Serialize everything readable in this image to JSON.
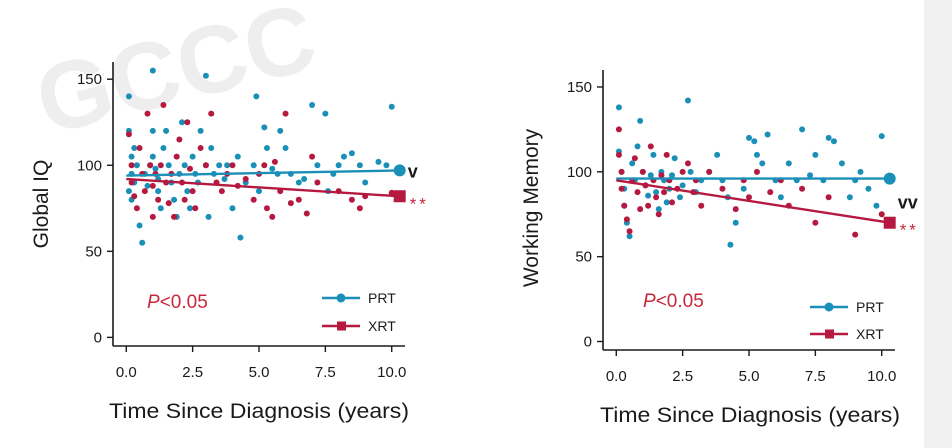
{
  "colors": {
    "prt": "#1a8fb8",
    "xrt": "#b5193f",
    "pval": "#c8283c",
    "axis": "#1a1a1a"
  },
  "watermark": "GCCC",
  "chart_data": [
    {
      "id": "global-iq",
      "type": "scatter",
      "ylabel": "Global IQ",
      "xlabel": "Time Since Diagnosis (years)",
      "xlim": [
        -0.5,
        10.5
      ],
      "ylim": [
        -5,
        160
      ],
      "xticks": [
        0,
        2.5,
        5,
        7.5,
        10
      ],
      "xtick_labels": [
        "0.0",
        "2.5",
        "5.0",
        "7.5",
        "10.0"
      ],
      "yticks": [
        0,
        50,
        100,
        150
      ],
      "ytick_labels": [
        "0",
        "50",
        "100",
        "150"
      ],
      "p_prefix": "P",
      "p_suffix": "<0.05",
      "legend": [
        {
          "key": "prt",
          "label": "PRT"
        },
        {
          "key": "xrt",
          "label": "XRT"
        }
      ],
      "end_markers": [
        {
          "key": "prt",
          "text": "v"
        },
        {
          "key": "xrt",
          "text": "**"
        }
      ],
      "series": [
        {
          "key": "prt",
          "name": "PRT",
          "line": {
            "x": [
              0,
              10.3
            ],
            "y": [
              94,
              97
            ]
          },
          "points": [
            [
              0.1,
              140
            ],
            [
              0.1,
              120
            ],
            [
              0.2,
              105
            ],
            [
              0.2,
              95
            ],
            [
              0.3,
              90
            ],
            [
              0.1,
              85
            ],
            [
              0.2,
              80
            ],
            [
              0.4,
              100
            ],
            [
              0.3,
              110
            ],
            [
              0.5,
              65
            ],
            [
              0.6,
              55
            ],
            [
              0.7,
              95
            ],
            [
              0.8,
              88
            ],
            [
              0.9,
              100
            ],
            [
              1.0,
              155
            ],
            [
              1.0,
              120
            ],
            [
              1.0,
              105
            ],
            [
              1.1,
              98
            ],
            [
              1.2,
              92
            ],
            [
              1.2,
              85
            ],
            [
              1.3,
              75
            ],
            [
              1.4,
              110
            ],
            [
              1.5,
              120
            ],
            [
              1.6,
              100
            ],
            [
              1.7,
              90
            ],
            [
              1.8,
              80
            ],
            [
              1.9,
              70
            ],
            [
              2.0,
              95
            ],
            [
              2.1,
              125
            ],
            [
              2.2,
              100
            ],
            [
              2.3,
              85
            ],
            [
              2.4,
              75
            ],
            [
              2.5,
              105
            ],
            [
              2.6,
              95
            ],
            [
              2.7,
              90
            ],
            [
              2.8,
              120
            ],
            [
              3.0,
              152
            ],
            [
              3.0,
              100
            ],
            [
              3.1,
              70
            ],
            [
              3.2,
              110
            ],
            [
              3.3,
              95
            ],
            [
              3.5,
              100
            ],
            [
              3.7,
              92
            ],
            [
              3.8,
              100
            ],
            [
              4.0,
              75
            ],
            [
              4.2,
              105
            ],
            [
              4.3,
              58
            ],
            [
              4.5,
              90
            ],
            [
              4.8,
              100
            ],
            [
              4.9,
              140
            ],
            [
              5.0,
              85
            ],
            [
              5.2,
              122
            ],
            [
              5.3,
              110
            ],
            [
              5.5,
              98
            ],
            [
              5.7,
              95
            ],
            [
              5.8,
              120
            ],
            [
              6.0,
              110
            ],
            [
              6.2,
              95
            ],
            [
              6.5,
              90
            ],
            [
              6.7,
              92
            ],
            [
              7.0,
              135
            ],
            [
              7.2,
              100
            ],
            [
              7.5,
              130
            ],
            [
              7.6,
              85
            ],
            [
              7.8,
              95
            ],
            [
              8.0,
              100
            ],
            [
              8.2,
              105
            ],
            [
              8.5,
              107
            ],
            [
              8.8,
              100
            ],
            [
              9.0,
              90
            ],
            [
              9.5,
              102
            ],
            [
              9.8,
              100
            ],
            [
              10.0,
              134
            ]
          ]
        },
        {
          "key": "xrt",
          "name": "XRT",
          "line": {
            "x": [
              0,
              10.3
            ],
            "y": [
              92,
              82
            ]
          },
          "points": [
            [
              0.1,
              118
            ],
            [
              0.2,
              100
            ],
            [
              0.2,
              90
            ],
            [
              0.3,
              82
            ],
            [
              0.4,
              75
            ],
            [
              0.5,
              110
            ],
            [
              0.6,
              95
            ],
            [
              0.7,
              85
            ],
            [
              0.8,
              130
            ],
            [
              0.9,
              100
            ],
            [
              1.0,
              70
            ],
            [
              1.0,
              88
            ],
            [
              1.1,
              95
            ],
            [
              1.2,
              80
            ],
            [
              1.3,
              100
            ],
            [
              1.4,
              135
            ],
            [
              1.5,
              90
            ],
            [
              1.6,
              78
            ],
            [
              1.7,
              95
            ],
            [
              1.8,
              70
            ],
            [
              1.9,
              105
            ],
            [
              2.0,
              115
            ],
            [
              2.1,
              90
            ],
            [
              2.2,
              80
            ],
            [
              2.3,
              125
            ],
            [
              2.4,
              98
            ],
            [
              2.5,
              85
            ],
            [
              2.6,
              75
            ],
            [
              2.8,
              110
            ],
            [
              3.0,
              100
            ],
            [
              3.2,
              130
            ],
            [
              3.4,
              90
            ],
            [
              3.6,
              85
            ],
            [
              3.8,
              95
            ],
            [
              4.0,
              100
            ],
            [
              4.2,
              88
            ],
            [
              4.5,
              92
            ],
            [
              4.8,
              80
            ],
            [
              5.0,
              95
            ],
            [
              5.2,
              100
            ],
            [
              5.3,
              75
            ],
            [
              5.5,
              70
            ],
            [
              5.6,
              102
            ],
            [
              5.8,
              85
            ],
            [
              6.0,
              130
            ],
            [
              6.2,
              78
            ],
            [
              6.5,
              80
            ],
            [
              6.8,
              72
            ],
            [
              7.0,
              105
            ],
            [
              7.2,
              90
            ],
            [
              8.0,
              85
            ],
            [
              8.5,
              80
            ],
            [
              8.8,
              75
            ],
            [
              9.0,
              82
            ],
            [
              10.0,
              84
            ]
          ]
        }
      ]
    },
    {
      "id": "working-memory",
      "type": "scatter",
      "ylabel": "Working Memory",
      "xlabel": "Time Since Diagnosis (years)",
      "xlim": [
        -0.5,
        10.5
      ],
      "ylim": [
        -5,
        160
      ],
      "xticks": [
        0,
        2.5,
        5,
        7.5,
        10
      ],
      "xtick_labels": [
        "0.0",
        "2.5",
        "5.0",
        "7.5",
        "10.0"
      ],
      "yticks": [
        0,
        50,
        100,
        150
      ],
      "ytick_labels": [
        "0",
        "50",
        "100",
        "150"
      ],
      "p_prefix": "P",
      "p_suffix": "<0.05",
      "legend": [
        {
          "key": "prt",
          "label": "PRT"
        },
        {
          "key": "xrt",
          "label": "XRT"
        }
      ],
      "end_markers": [
        {
          "key": "prt",
          "text": "vv"
        },
        {
          "key": "xrt",
          "text": "**"
        }
      ],
      "series": [
        {
          "key": "prt",
          "name": "PRT",
          "line": {
            "x": [
              0,
              10.3
            ],
            "y": [
              96,
              96
            ]
          },
          "points": [
            [
              0.1,
              138
            ],
            [
              0.1,
              112
            ],
            [
              0.2,
              100
            ],
            [
              0.3,
              90
            ],
            [
              0.3,
              80
            ],
            [
              0.4,
              70
            ],
            [
              0.5,
              62
            ],
            [
              0.6,
              105
            ],
            [
              0.7,
              95
            ],
            [
              0.8,
              115
            ],
            [
              0.9,
              130
            ],
            [
              1.0,
              100
            ],
            [
              1.1,
              92
            ],
            [
              1.2,
              86
            ],
            [
              1.3,
              98
            ],
            [
              1.4,
              110
            ],
            [
              1.5,
              88
            ],
            [
              1.6,
              78
            ],
            [
              1.7,
              100
            ],
            [
              1.8,
              95
            ],
            [
              1.9,
              82
            ],
            [
              2.0,
              90
            ],
            [
              2.1,
              98
            ],
            [
              2.2,
              108
            ],
            [
              2.4,
              85
            ],
            [
              2.5,
              92
            ],
            [
              2.7,
              142
            ],
            [
              2.8,
              100
            ],
            [
              3.0,
              88
            ],
            [
              3.2,
              95
            ],
            [
              3.5,
              100
            ],
            [
              3.8,
              110
            ],
            [
              4.0,
              95
            ],
            [
              4.2,
              85
            ],
            [
              4.3,
              57
            ],
            [
              4.5,
              70
            ],
            [
              4.8,
              90
            ],
            [
              5.0,
              120
            ],
            [
              5.2,
              118
            ],
            [
              5.3,
              110
            ],
            [
              5.5,
              105
            ],
            [
              5.7,
              122
            ],
            [
              6.0,
              95
            ],
            [
              6.2,
              85
            ],
            [
              6.5,
              105
            ],
            [
              6.8,
              95
            ],
            [
              7.0,
              125
            ],
            [
              7.3,
              98
            ],
            [
              7.5,
              110
            ],
            [
              7.8,
              95
            ],
            [
              8.0,
              120
            ],
            [
              8.2,
              118
            ],
            [
              8.5,
              105
            ],
            [
              8.8,
              85
            ],
            [
              9.0,
              95
            ],
            [
              9.2,
              100
            ],
            [
              9.5,
              90
            ],
            [
              9.8,
              80
            ],
            [
              10.0,
              121
            ]
          ]
        },
        {
          "key": "xrt",
          "name": "XRT",
          "line": {
            "x": [
              0,
              10.3
            ],
            "y": [
              95,
              70
            ]
          },
          "points": [
            [
              0.1,
              125
            ],
            [
              0.1,
              110
            ],
            [
              0.2,
              100
            ],
            [
              0.2,
              90
            ],
            [
              0.3,
              80
            ],
            [
              0.4,
              72
            ],
            [
              0.5,
              65
            ],
            [
              0.6,
              95
            ],
            [
              0.7,
              108
            ],
            [
              0.8,
              88
            ],
            [
              0.9,
              78
            ],
            [
              1.0,
              100
            ],
            [
              1.1,
              92
            ],
            [
              1.2,
              80
            ],
            [
              1.3,
              115
            ],
            [
              1.4,
              95
            ],
            [
              1.5,
              85
            ],
            [
              1.6,
              75
            ],
            [
              1.7,
              98
            ],
            [
              1.8,
              88
            ],
            [
              1.9,
              110
            ],
            [
              2.0,
              95
            ],
            [
              2.1,
              82
            ],
            [
              2.3,
              90
            ],
            [
              2.5,
              100
            ],
            [
              2.7,
              105
            ],
            [
              2.9,
              88
            ],
            [
              3.0,
              95
            ],
            [
              3.2,
              80
            ],
            [
              3.5,
              100
            ],
            [
              4.0,
              90
            ],
            [
              4.5,
              78
            ],
            [
              4.8,
              95
            ],
            [
              5.0,
              85
            ],
            [
              5.3,
              100
            ],
            [
              5.8,
              88
            ],
            [
              6.2,
              95
            ],
            [
              6.5,
              80
            ],
            [
              7.0,
              90
            ],
            [
              7.5,
              70
            ],
            [
              8.0,
              85
            ],
            [
              9.0,
              63
            ],
            [
              10.0,
              75
            ]
          ]
        }
      ]
    }
  ]
}
